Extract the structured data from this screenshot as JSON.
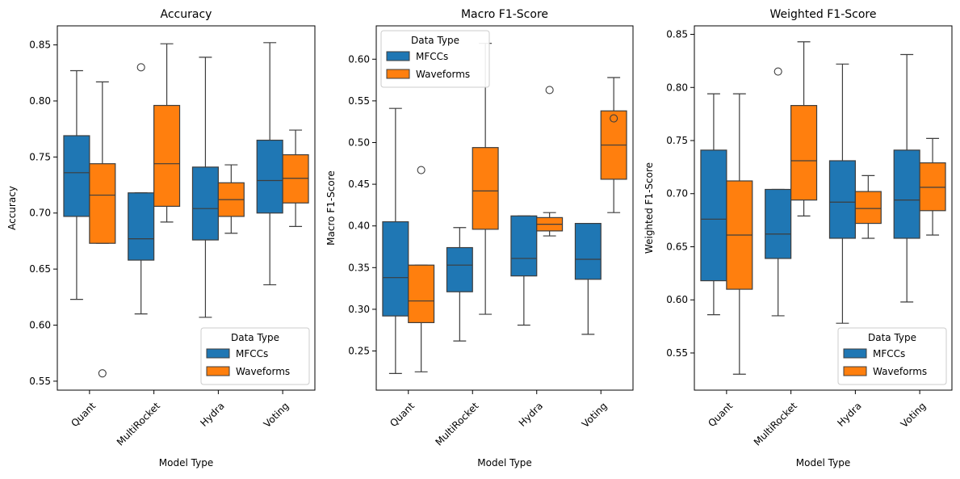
{
  "chart_data": [
    {
      "type": "boxplot",
      "title": "Accuracy",
      "xlabel": "Model Type",
      "ylabel": "Accuracy",
      "categories": [
        "Quant",
        "MultiRocket",
        "Hydra",
        "Voting"
      ],
      "ylim": [
        0.542,
        0.867
      ],
      "yticks": [
        "0.55",
        "0.60",
        "0.65",
        "0.70",
        "0.75",
        "0.80",
        "0.85"
      ],
      "legend": {
        "title": "Data Type",
        "position": "lower-right",
        "entries": [
          "MFCCs",
          "Waveforms"
        ]
      },
      "series": [
        {
          "name": "MFCCs",
          "color": "#1f77b4",
          "boxes": [
            {
              "whislo": 0.623,
              "q1": 0.697,
              "med": 0.736,
              "q3": 0.769,
              "whishi": 0.827,
              "fliers": []
            },
            {
              "whislo": 0.61,
              "q1": 0.658,
              "med": 0.677,
              "q3": 0.718,
              "whishi": 0.718,
              "fliers": [
                0.83
              ]
            },
            {
              "whislo": 0.607,
              "q1": 0.676,
              "med": 0.704,
              "q3": 0.741,
              "whishi": 0.839,
              "fliers": []
            },
            {
              "whislo": 0.636,
              "q1": 0.7,
              "med": 0.729,
              "q3": 0.765,
              "whishi": 0.852,
              "fliers": []
            }
          ]
        },
        {
          "name": "Waveforms",
          "color": "#ff7f0e",
          "boxes": [
            {
              "whislo": 0.673,
              "q1": 0.673,
              "med": 0.716,
              "q3": 0.744,
              "whishi": 0.817,
              "fliers": [
                0.557
              ]
            },
            {
              "whislo": 0.692,
              "q1": 0.706,
              "med": 0.744,
              "q3": 0.796,
              "whishi": 0.851,
              "fliers": []
            },
            {
              "whislo": 0.682,
              "q1": 0.697,
              "med": 0.712,
              "q3": 0.727,
              "whishi": 0.743,
              "fliers": []
            },
            {
              "whislo": 0.688,
              "q1": 0.709,
              "med": 0.731,
              "q3": 0.752,
              "whishi": 0.774,
              "fliers": []
            }
          ]
        }
      ]
    },
    {
      "type": "boxplot",
      "title": "Macro F1-Score",
      "xlabel": "Model Type",
      "ylabel": "Macro F1-Score",
      "categories": [
        "Quant",
        "MultiRocket",
        "Hydra",
        "Voting"
      ],
      "ylim": [
        0.203,
        0.64
      ],
      "yticks": [
        "0.25",
        "0.30",
        "0.35",
        "0.40",
        "0.45",
        "0.50",
        "0.55",
        "0.60"
      ],
      "legend": {
        "title": "Data Type",
        "position": "upper-left",
        "entries": [
          "MFCCs",
          "Waveforms"
        ]
      },
      "series": [
        {
          "name": "MFCCs",
          "color": "#1f77b4",
          "boxes": [
            {
              "whislo": 0.223,
              "q1": 0.292,
              "med": 0.338,
              "q3": 0.405,
              "whishi": 0.541,
              "fliers": []
            },
            {
              "whislo": 0.262,
              "q1": 0.321,
              "med": 0.353,
              "q3": 0.374,
              "whishi": 0.398,
              "fliers": []
            },
            {
              "whislo": 0.281,
              "q1": 0.34,
              "med": 0.361,
              "q3": 0.412,
              "whishi": 0.412,
              "fliers": []
            },
            {
              "whislo": 0.27,
              "q1": 0.336,
              "med": 0.36,
              "q3": 0.403,
              "whishi": 0.403,
              "fliers": []
            }
          ]
        },
        {
          "name": "Waveforms",
          "color": "#ff7f0e",
          "boxes": [
            {
              "whislo": 0.225,
              "q1": 0.284,
              "med": 0.31,
              "q3": 0.353,
              "whishi": 0.353,
              "fliers": [
                0.467
              ]
            },
            {
              "whislo": 0.294,
              "q1": 0.396,
              "med": 0.442,
              "q3": 0.494,
              "whishi": 0.619,
              "fliers": []
            },
            {
              "whislo": 0.388,
              "q1": 0.394,
              "med": 0.402,
              "q3": 0.41,
              "whishi": 0.416,
              "fliers": [
                0.563
              ]
            },
            {
              "whislo": 0.416,
              "q1": 0.456,
              "med": 0.497,
              "q3": 0.538,
              "whishi": 0.578,
              "fliers": [
                0.529
              ]
            }
          ]
        }
      ]
    },
    {
      "type": "boxplot",
      "title": "Weighted F1-Score",
      "xlabel": "Model Type",
      "ylabel": "Weighted F1-Score",
      "categories": [
        "Quant",
        "MultiRocket",
        "Hydra",
        "Voting"
      ],
      "ylim": [
        0.515,
        0.858
      ],
      "yticks": [
        "0.55",
        "0.60",
        "0.65",
        "0.70",
        "0.75",
        "0.80",
        "0.85"
      ],
      "legend": {
        "title": "Data Type",
        "position": "lower-right",
        "entries": [
          "MFCCs",
          "Waveforms"
        ]
      },
      "series": [
        {
          "name": "MFCCs",
          "color": "#1f77b4",
          "boxes": [
            {
              "whislo": 0.586,
              "q1": 0.618,
              "med": 0.676,
              "q3": 0.741,
              "whishi": 0.794,
              "fliers": []
            },
            {
              "whislo": 0.585,
              "q1": 0.639,
              "med": 0.662,
              "q3": 0.704,
              "whishi": 0.704,
              "fliers": [
                0.815
              ]
            },
            {
              "whislo": 0.578,
              "q1": 0.658,
              "med": 0.692,
              "q3": 0.731,
              "whishi": 0.822,
              "fliers": []
            },
            {
              "whislo": 0.598,
              "q1": 0.658,
              "med": 0.694,
              "q3": 0.741,
              "whishi": 0.831,
              "fliers": []
            }
          ]
        },
        {
          "name": "Waveforms",
          "color": "#ff7f0e",
          "boxes": [
            {
              "whislo": 0.53,
              "q1": 0.61,
              "med": 0.661,
              "q3": 0.712,
              "whishi": 0.794,
              "fliers": []
            },
            {
              "whislo": 0.679,
              "q1": 0.694,
              "med": 0.731,
              "q3": 0.783,
              "whishi": 0.843,
              "fliers": []
            },
            {
              "whislo": 0.658,
              "q1": 0.672,
              "med": 0.686,
              "q3": 0.702,
              "whishi": 0.717,
              "fliers": []
            },
            {
              "whislo": 0.661,
              "q1": 0.684,
              "med": 0.706,
              "q3": 0.729,
              "whishi": 0.752,
              "fliers": []
            }
          ]
        }
      ]
    }
  ]
}
